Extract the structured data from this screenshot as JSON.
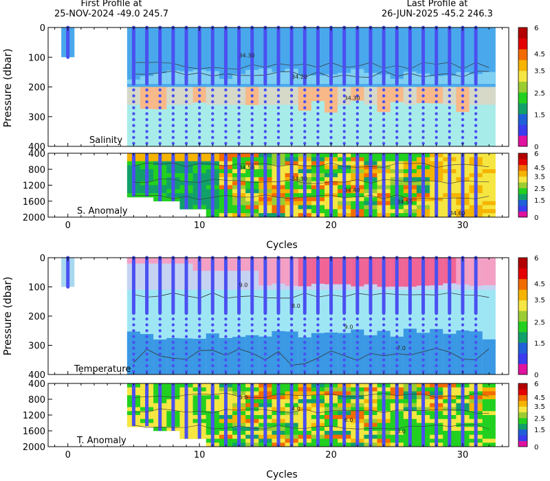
{
  "header": {
    "first_label": "First Profile at",
    "first_value": "25-NOV-2024    -49.0  245.7",
    "last_label": "Last Profile at",
    "last_value": "26-JUN-2025    -45.2  246.3"
  },
  "colorbar": {
    "ticks": [
      "6",
      "4.5",
      "3.5",
      "2.5",
      "1.5",
      "0"
    ],
    "colors": [
      "#e0129e",
      "#3b3bf0",
      "#2060d8",
      "#12a06a",
      "#22d020",
      "#9acd32",
      "#f5e642",
      "#f5b400",
      "#f26b00",
      "#e40000",
      "#b30000"
    ]
  },
  "chart_data": [
    {
      "type": "heatmap",
      "name": "salinity-upper",
      "label": "Salinity",
      "ylabel": "Pressure (dbar)",
      "y_ticks": [
        "0",
        "100",
        "200",
        "300",
        "400"
      ],
      "ylim": [
        0,
        400
      ],
      "contour_labels": [
        "34.30",
        "34.20",
        "34.30"
      ],
      "profile_cycles": [
        0,
        5,
        6,
        7,
        8,
        9,
        10,
        11,
        12,
        13,
        14,
        15,
        16,
        17,
        18,
        19,
        20,
        21,
        22,
        23,
        24,
        25,
        26,
        27,
        28,
        29,
        30,
        31
      ]
    },
    {
      "type": "heatmap",
      "name": "salinity-anomaly",
      "label": "S. Anomaly",
      "xlabel": "Cycles",
      "x_ticks": [
        "0",
        "10",
        "20",
        "30"
      ],
      "xlim": [
        -1.5,
        33.5
      ],
      "y_ticks": [
        "400",
        "800",
        "1200",
        "1600",
        "2000"
      ],
      "ylim": [
        400,
        2000
      ],
      "contour_labels": [
        "34.50",
        "34.30",
        "34.40",
        "34.55",
        "34.60"
      ]
    },
    {
      "type": "heatmap",
      "name": "temperature-upper",
      "label": "Temperature",
      "ylabel": "Pressure (dbar)",
      "y_ticks": [
        "0",
        "100",
        "200",
        "300",
        "400"
      ],
      "ylim": [
        0,
        400
      ],
      "contour_labels": [
        "9.0",
        "8.0",
        "9.0",
        "7.0"
      ],
      "profile_cycles": [
        0,
        5,
        6,
        7,
        8,
        9,
        10,
        11,
        12,
        13,
        14,
        15,
        16,
        17,
        18,
        19,
        20,
        21,
        22,
        23,
        24,
        25,
        26,
        27,
        28,
        29,
        30,
        31
      ]
    },
    {
      "type": "heatmap",
      "name": "temperature-anomaly",
      "label": "T. Anomaly",
      "xlabel": "Cycles",
      "x_ticks": [
        "0",
        "10",
        "20",
        "30"
      ],
      "xlim": [
        -1.5,
        33.5
      ],
      "y_ticks": [
        "400",
        "800",
        "1200",
        "1600",
        "2000"
      ],
      "ylim": [
        400,
        2000
      ],
      "contour_labels": [
        "5.0",
        "4.0",
        "6.0",
        "3.0"
      ]
    }
  ]
}
